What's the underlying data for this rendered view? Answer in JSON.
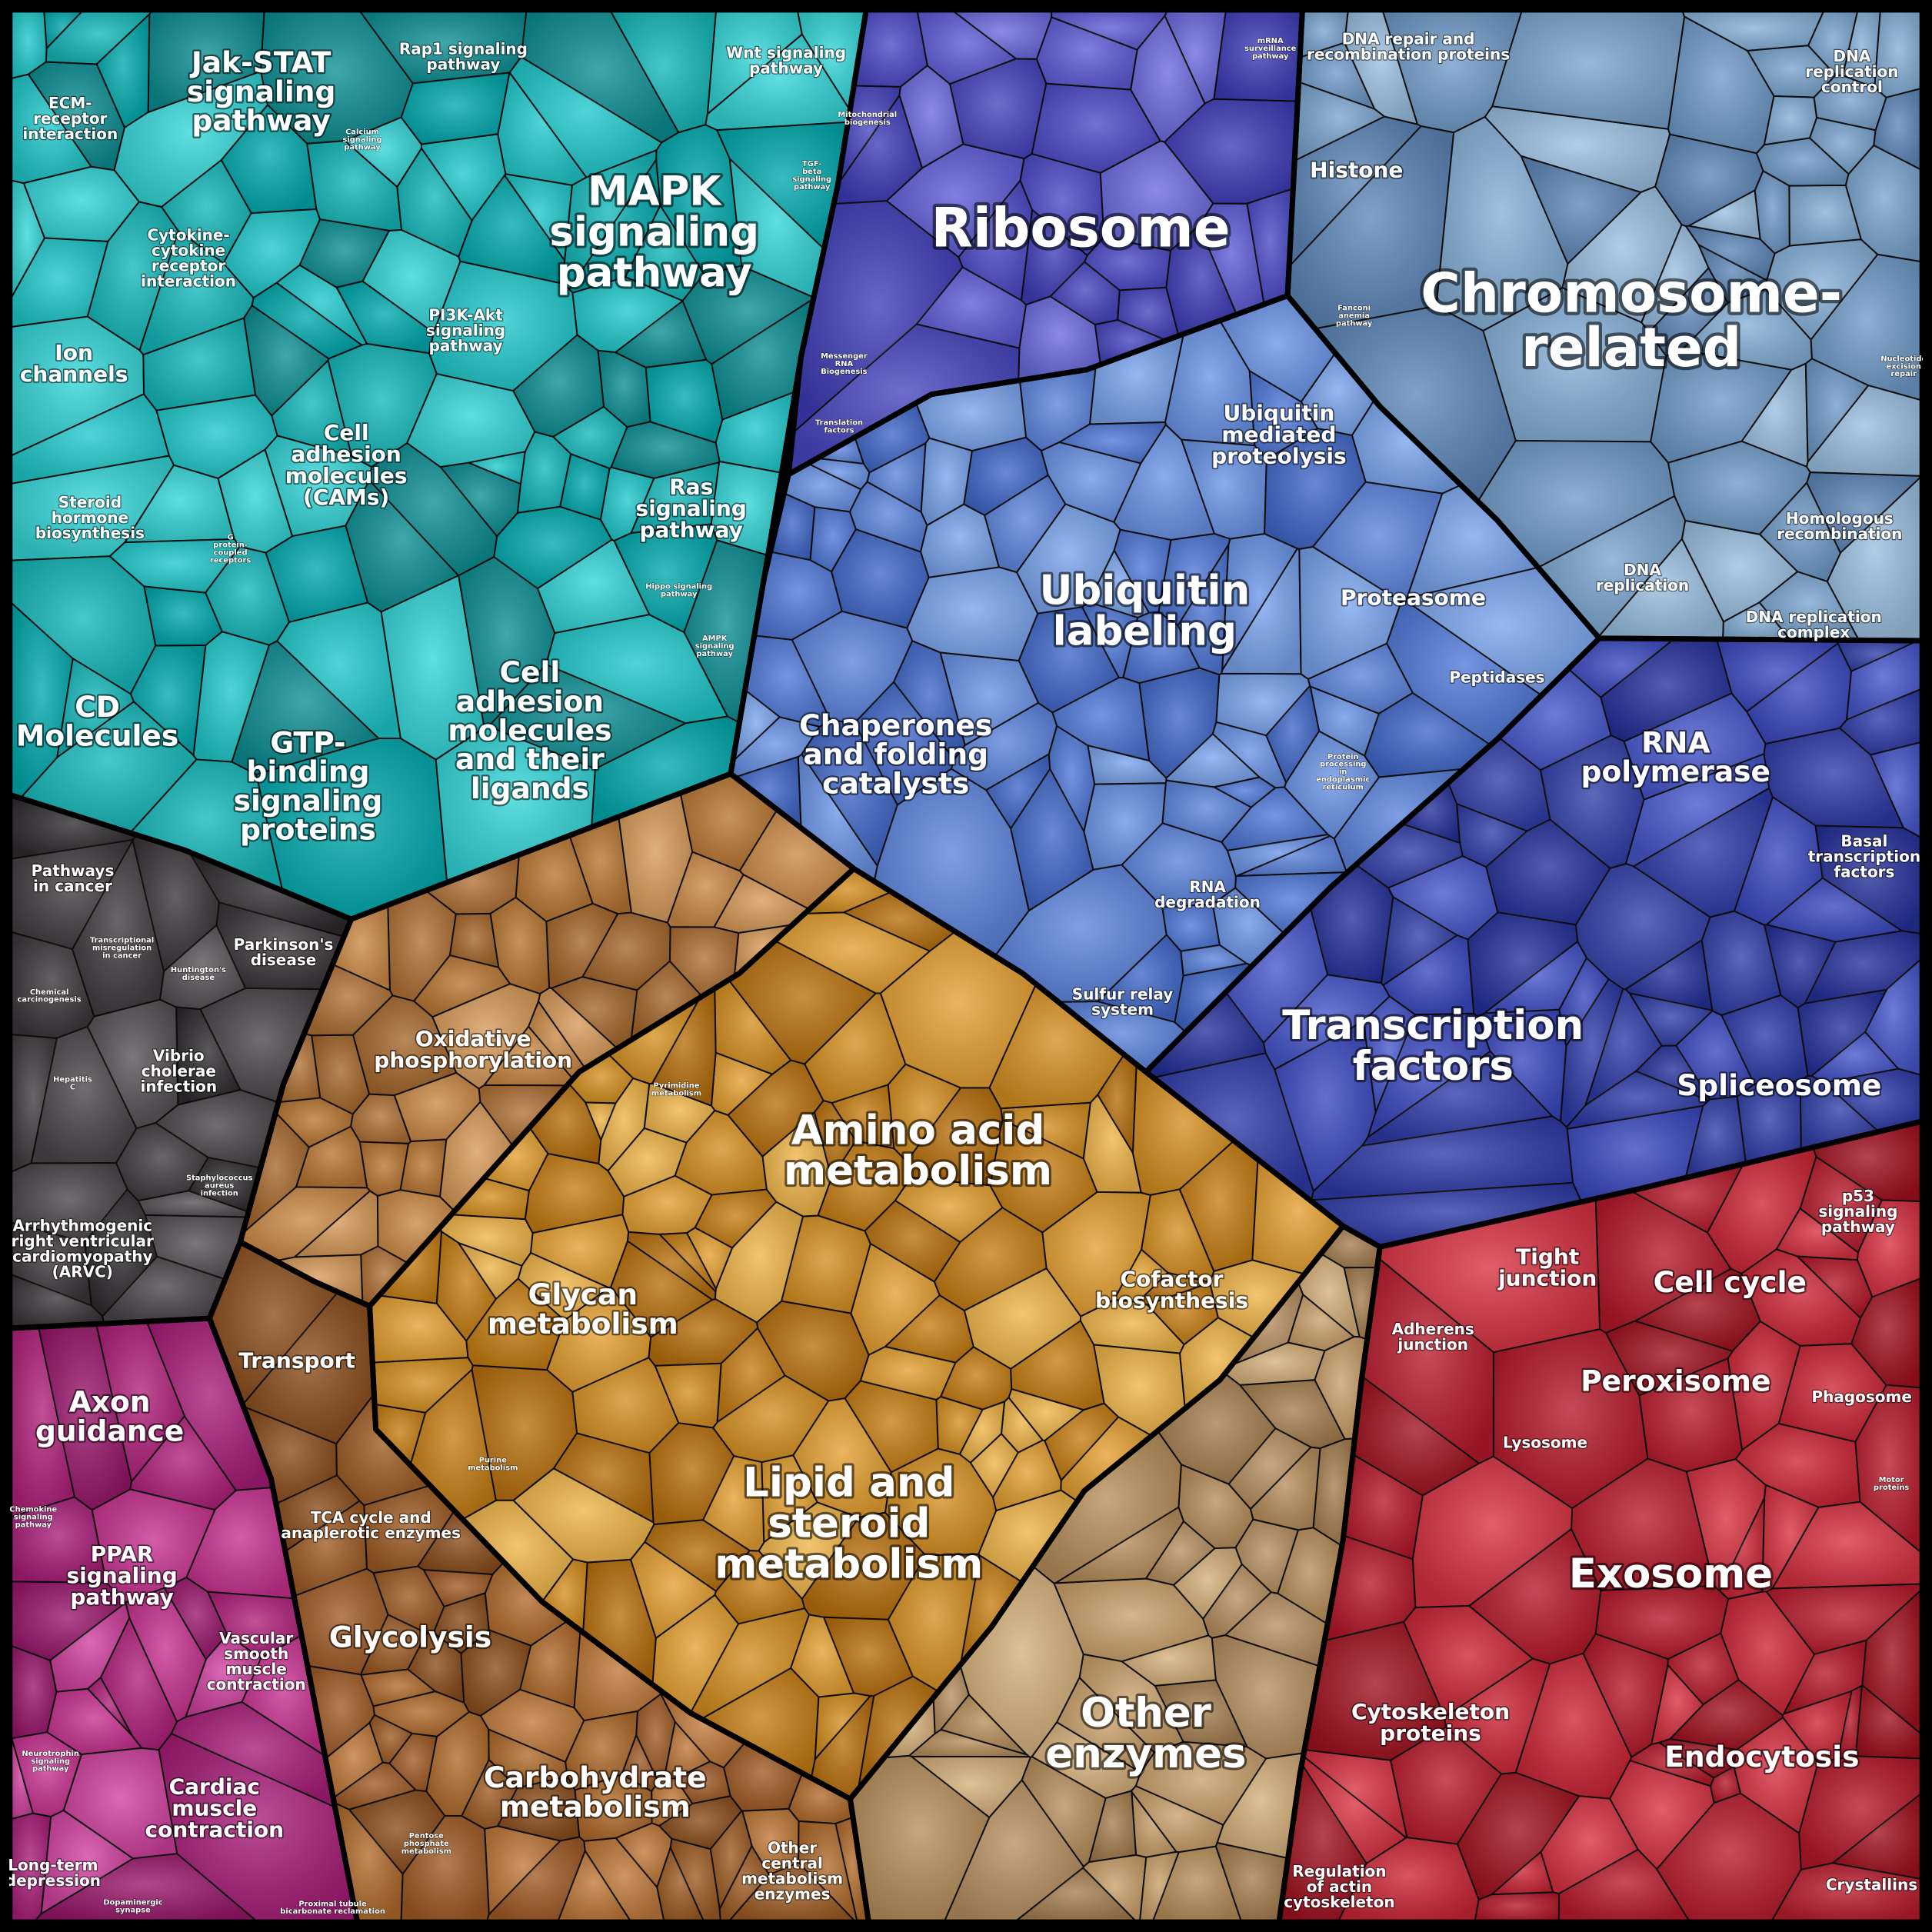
{
  "groups": [
    {
      "name": "signaling",
      "colors": [
        "#00a9ad",
        "#1fc9cc",
        "#0b8e93",
        "#14b8ba",
        "#33d6d8"
      ]
    },
    {
      "name": "genetic-information",
      "colors": [
        "#4f78d8",
        "#6a94e8",
        "#3f66c8",
        "#7aa4ee",
        "#5c84de"
      ]
    },
    {
      "name": "replication-repair",
      "colors": [
        "#6f9ac8",
        "#86b0d8",
        "#5d86b8",
        "#9ac0e2",
        "#7aa4cf"
      ]
    },
    {
      "name": "transcription",
      "colors": [
        "#2e3aa8",
        "#3a48c0",
        "#25309a",
        "#4656cc",
        "#303ea8"
      ]
    },
    {
      "name": "ribosome",
      "colors": [
        "#4a4ac8",
        "#5c5cd8",
        "#3c3cb8",
        "#6a6ae0",
        "#4545c0"
      ]
    },
    {
      "name": "metabolism",
      "colors": [
        "#d68f1f",
        "#e6a030",
        "#c77d12",
        "#f0b548",
        "#b86f0c"
      ]
    },
    {
      "name": "energy-metabolism",
      "colors": [
        "#b87530",
        "#cc8a45",
        "#a5662a",
        "#d89a58",
        "#b07035"
      ]
    },
    {
      "name": "carbohydrate",
      "colors": [
        "#9c5a22",
        "#b06a2a",
        "#8a4c1a",
        "#c07838",
        "#a05a25"
      ]
    },
    {
      "name": "other-enzymes",
      "colors": [
        "#b88e5a",
        "#caa06a",
        "#a67e4e",
        "#d6b07a",
        "#b89060"
      ]
    },
    {
      "name": "cellular-processes",
      "colors": [
        "#b5172a",
        "#cc2435",
        "#a0101f",
        "#d83040",
        "#b81a2c"
      ]
    },
    {
      "name": "organismal",
      "colors": [
        "#b0207a",
        "#c83090",
        "#98156a",
        "#d040a0",
        "#a81c78"
      ]
    },
    {
      "name": "disease",
      "colors": [
        "#3a3438",
        "#4a4448",
        "#2e2a2e",
        "#555055",
        "#403a3e"
      ]
    }
  ],
  "labels": [
    {
      "text": "Jak-STAT\nsignaling\npathway",
      "size": "large"
    },
    {
      "text": "Rap1 signaling\npathway",
      "size": "small"
    },
    {
      "text": "Wnt signaling\npathway",
      "size": "small"
    },
    {
      "text": "ECM-\nreceptor\ninteraction",
      "size": "small"
    },
    {
      "text": "Calcium\nsignaling\npathway",
      "size": "tiny"
    },
    {
      "text": "Mitochondrial\nbiogenesis",
      "size": "tiny"
    },
    {
      "text": "TGF-\nbeta\nsignaling\npathway",
      "size": "tiny"
    },
    {
      "text": "MAPK\nsignaling\npathway",
      "size": "xlarge"
    },
    {
      "text": "Cytokine-\ncytokine\nreceptor\ninteraction",
      "size": "small"
    },
    {
      "text": "Ion\nchannels",
      "size": "medium"
    },
    {
      "text": "PI3K-Akt\nsignaling\npathway",
      "size": "small"
    },
    {
      "text": "Cell\nadhesion\nmolecules\n(CAMs)",
      "size": "medium"
    },
    {
      "text": "Steroid\nhormone\nbiosynthesis",
      "size": "small"
    },
    {
      "text": "G\nprotein-\ncoupled\nreceptors",
      "size": "tiny"
    },
    {
      "text": "Ras\nsignaling\npathway",
      "size": "medium"
    },
    {
      "text": "Hippo signaling\npathway",
      "size": "tiny"
    },
    {
      "text": "AMPK\nsignaling\npathway",
      "size": "tiny"
    },
    {
      "text": "CD\nMolecules",
      "size": "large"
    },
    {
      "text": "GTP-\nbinding\nsignaling\nproteins",
      "size": "large"
    },
    {
      "text": "Cell\nadhesion\nmolecules\nand their\nligands",
      "size": "large"
    },
    {
      "text": "mRNA\nsurveillance\npathway",
      "size": "tiny"
    },
    {
      "text": "Ribosome",
      "size": "huge"
    },
    {
      "text": "Messenger\nRNA\nBiogenesis",
      "size": "tiny"
    },
    {
      "text": "Translation\nfactors",
      "size": "tiny"
    },
    {
      "text": "DNA repair and\nrecombination proteins",
      "size": "small"
    },
    {
      "text": "DNA\nreplication\ncontrol",
      "size": "small"
    },
    {
      "text": "Histone",
      "size": "medium"
    },
    {
      "text": "Chromosome-\nrelated",
      "size": "huge"
    },
    {
      "text": "Fanconi\nanemia\npathway",
      "size": "tiny"
    },
    {
      "text": "Nucleotide\nexcision\nrepair",
      "size": "tiny"
    },
    {
      "text": "Ubiquitin\nmediated\nproteolysis",
      "size": "medium"
    },
    {
      "text": "Homologous\nrecombination",
      "size": "small"
    },
    {
      "text": "Ubiquitin\nlabeling",
      "size": "xlarge"
    },
    {
      "text": "Proteasome",
      "size": "medium"
    },
    {
      "text": "DNA\nreplication",
      "size": "small"
    },
    {
      "text": "DNA replication\ncomplex",
      "size": "small"
    },
    {
      "text": "Peptidases",
      "size": "small"
    },
    {
      "text": "Chaperones\nand folding\ncatalysts",
      "size": "large"
    },
    {
      "text": "RNA\npolymerase",
      "size": "large"
    },
    {
      "text": "Protein\nprocessing\nin\nendoplasmic\nreticulum",
      "size": "tiny"
    },
    {
      "text": "Basal\ntranscription\nfactors",
      "size": "small"
    },
    {
      "text": "RNA\ndegradation",
      "size": "small"
    },
    {
      "text": "Sulfur relay\nsystem",
      "size": "small"
    },
    {
      "text": "Transcription\nfactors",
      "size": "xlarge"
    },
    {
      "text": "Spliceosome",
      "size": "large"
    },
    {
      "text": "Pathways\nin cancer",
      "size": "small"
    },
    {
      "text": "Transcriptional\nmisregulation\nin cancer",
      "size": "tiny"
    },
    {
      "text": "Parkinson's\ndisease",
      "size": "small"
    },
    {
      "text": "Huntington's\ndisease",
      "size": "tiny"
    },
    {
      "text": "Chemical\ncarcinogenesis",
      "size": "tiny"
    },
    {
      "text": "Vibrio\ncholerae\ninfection",
      "size": "small"
    },
    {
      "text": "Hepatitis\nC",
      "size": "tiny"
    },
    {
      "text": "Staphylococcus\naureus\ninfection",
      "size": "tiny"
    },
    {
      "text": "Arrhythmogenic\nright ventricular\ncardiomyopathy\n(ARVC)",
      "size": "small"
    },
    {
      "text": "Oxidative\nphosphorylation",
      "size": "medium"
    },
    {
      "text": "Pyrimidine\nmetabolism",
      "size": "tiny"
    },
    {
      "text": "Amino acid\nmetabolism",
      "size": "xlarge"
    },
    {
      "text": "Cofactor\nbiosynthesis",
      "size": "medium"
    },
    {
      "text": "Glycan\nmetabolism",
      "size": "large"
    },
    {
      "text": "Transport",
      "size": "medium"
    },
    {
      "text": "Purine\nmetabolism",
      "size": "tiny"
    },
    {
      "text": "Lipid and\nsteroid\nmetabolism",
      "size": "xlarge"
    },
    {
      "text": "TCA cycle and\nanaplerotic enzymes",
      "size": "small"
    },
    {
      "text": "Glycolysis",
      "size": "large"
    },
    {
      "text": "Other\nenzymes",
      "size": "xlarge"
    },
    {
      "text": "Carbohydrate\nmetabolism",
      "size": "large"
    },
    {
      "text": "Pentose\nphosphate\nmetabolism",
      "size": "tiny"
    },
    {
      "text": "Other\ncentral\nmetabolism\nenzymes",
      "size": "small"
    },
    {
      "text": "Axon\nguidance",
      "size": "large"
    },
    {
      "text": "Chemokine\nsignaling\npathway",
      "size": "tiny"
    },
    {
      "text": "PPAR\nsignaling\npathway",
      "size": "medium"
    },
    {
      "text": "Vascular\nsmooth\nmuscle\ncontraction",
      "size": "small"
    },
    {
      "text": "Cardiac\nmuscle\ncontraction",
      "size": "medium"
    },
    {
      "text": "Neurotrophin\nsignaling\npathway",
      "size": "tiny"
    },
    {
      "text": "Long-term\ndepression",
      "size": "small"
    },
    {
      "text": "Dopaminergic\nsynapse",
      "size": "tiny"
    },
    {
      "text": "Proximal tubule\nbicarbonate reclamation",
      "size": "tiny"
    },
    {
      "text": "p53\nsignaling\npathway",
      "size": "small"
    },
    {
      "text": "Tight\njunction",
      "size": "medium"
    },
    {
      "text": "Cell cycle",
      "size": "large"
    },
    {
      "text": "Adherens\njunction",
      "size": "small"
    },
    {
      "text": "Peroxisome",
      "size": "large"
    },
    {
      "text": "Phagosome",
      "size": "small"
    },
    {
      "text": "Lysosome",
      "size": "small"
    },
    {
      "text": "Motor\nproteins",
      "size": "tiny"
    },
    {
      "text": "Exosome",
      "size": "xlarge"
    },
    {
      "text": "Cytoskeleton\nproteins",
      "size": "medium"
    },
    {
      "text": "Endocytosis",
      "size": "large"
    },
    {
      "text": "Regulation\nof actin\ncytoskeleton",
      "size": "small"
    },
    {
      "text": "Crystallins",
      "size": "small"
    }
  ]
}
